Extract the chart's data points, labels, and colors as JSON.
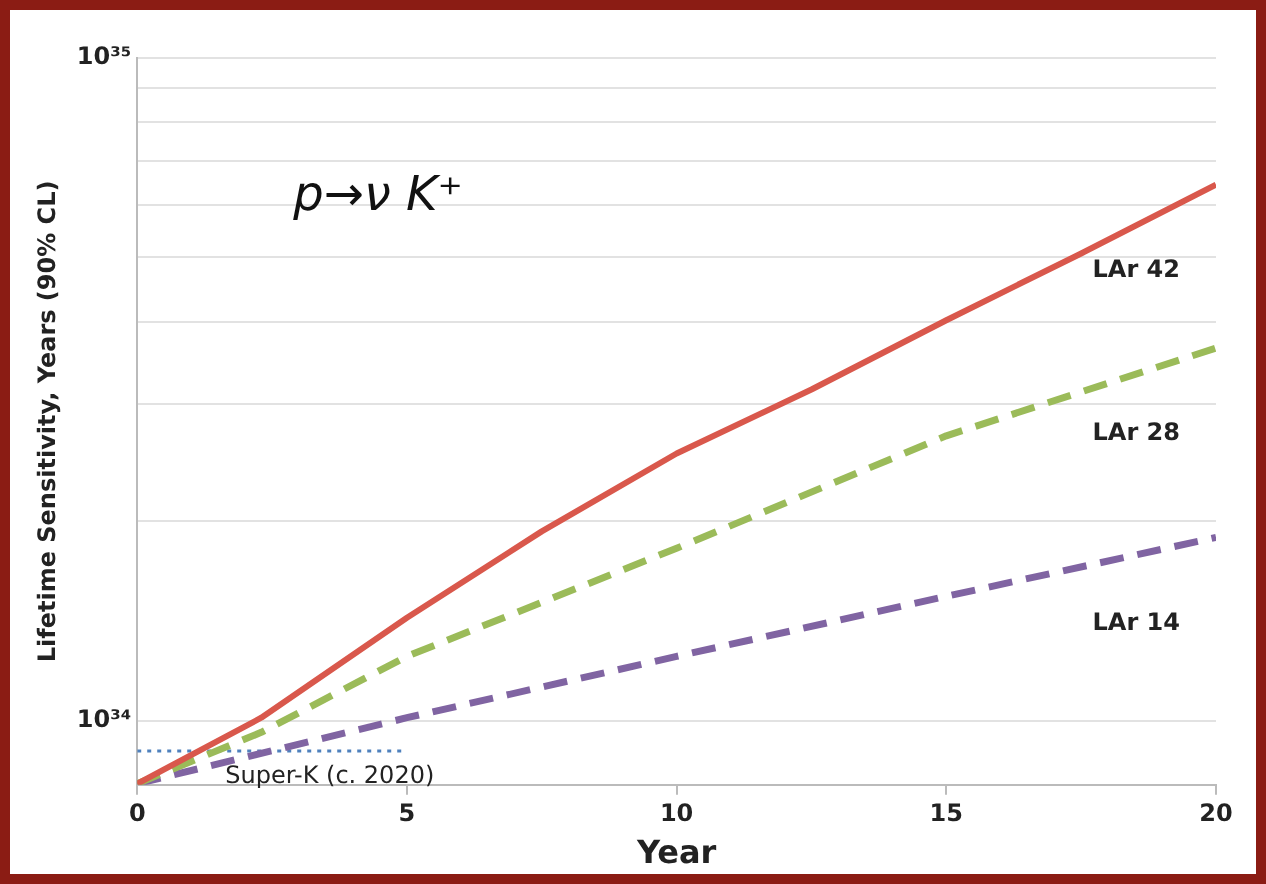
{
  "chart_data": {
    "type": "line",
    "xlabel": "Year",
    "ylabel": "Lifetime Sensitivity, Years (90% CL)",
    "annotations": [
      "p→ν K⁺"
    ],
    "log": "y",
    "grid": "y",
    "legend": false,
    "marker": "none",
    "xlim": [
      0,
      20
    ],
    "xticks": [
      0,
      5,
      10,
      15,
      20
    ],
    "ylim": [
      8e+33,
      1e+35
    ],
    "yticks": [
      {
        "value": 1e+34,
        "label": "10³⁴"
      },
      {
        "value": 2e+34,
        "label": null
      },
      {
        "value": 3e+34,
        "label": null
      },
      {
        "value": 4e+34,
        "label": null
      },
      {
        "value": 5e+34,
        "label": null
      },
      {
        "value": 6e+34,
        "label": null
      },
      {
        "value": 7e+34,
        "label": null
      },
      {
        "value": 8e+34,
        "label": null
      },
      {
        "value": 9e+34,
        "label": null
      },
      {
        "value": 1e+35,
        "label": "10³⁵"
      }
    ],
    "series": [
      {
        "name": "LAr 42",
        "color": "#d9584c",
        "line_style": "solid",
        "x": [
          0,
          2.3,
          5,
          7.5,
          10,
          12.5,
          15,
          17.5,
          20
        ],
        "values": [
          8.03e+33,
          1.01e+34,
          1.43e+34,
          1.93e+34,
          2.53e+34,
          3.16e+34,
          4.02e+34,
          5.07e+34,
          6.44e+34
        ]
      },
      {
        "name": "LAr 28",
        "color": "#9bbb59",
        "line_style": "dashed",
        "x": [
          0,
          2.3,
          5,
          10,
          15,
          20
        ],
        "values": [
          8.03e+33,
          9.6e+33,
          1.25e+34,
          1.82e+34,
          2.69e+34,
          3.65e+34
        ]
      },
      {
        "name": "LAr 14",
        "color": "#8064a2",
        "line_style": "dashed",
        "x": [
          0,
          5,
          10,
          15,
          20
        ],
        "values": [
          8.03e+33,
          1.01e+34,
          1.25e+34,
          1.54e+34,
          1.89e+34
        ]
      },
      {
        "name": "Super-K (c. 2020)",
        "color": "#4f81bd",
        "line_style": "dotted",
        "x": [
          0,
          5
        ],
        "values": [
          9e+33,
          9e+33
        ]
      }
    ]
  }
}
